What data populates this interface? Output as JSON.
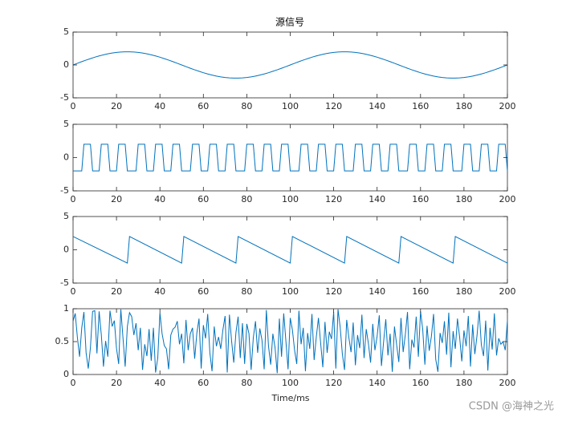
{
  "chart_data": [
    {
      "type": "line",
      "title": "源信号",
      "color": "#0072bd",
      "x": [
        0,
        2,
        4,
        6,
        8,
        10,
        12,
        14,
        16,
        18,
        20,
        22,
        24,
        26,
        28,
        30,
        32,
        34,
        36,
        38,
        40,
        42,
        44,
        46,
        48,
        50,
        52,
        54,
        56,
        58,
        60,
        62,
        64,
        66,
        68,
        70,
        72,
        74,
        76,
        78,
        80,
        82,
        84,
        86,
        88,
        90,
        92,
        94,
        96,
        98,
        100,
        102,
        104,
        106,
        108,
        110,
        112,
        114,
        116,
        118,
        120,
        122,
        124,
        126,
        128,
        130,
        132,
        134,
        136,
        138,
        140,
        142,
        144,
        146,
        148,
        150,
        152,
        154,
        156,
        158,
        160,
        162,
        164,
        166,
        168,
        170,
        172,
        174,
        176,
        178,
        180,
        182,
        184,
        186,
        188,
        190,
        192,
        194,
        196,
        198,
        200
      ],
      "values": [
        0,
        0.25,
        0.5,
        0.74,
        0.96,
        1.18,
        1.37,
        1.54,
        1.69,
        1.81,
        1.9,
        1.96,
        2,
        2,
        1.96,
        1.9,
        1.81,
        1.69,
        1.54,
        1.37,
        1.18,
        0.96,
        0.74,
        0.5,
        0.25,
        0,
        -0.25,
        -0.5,
        -0.74,
        -0.96,
        -1.18,
        -1.37,
        -1.54,
        -1.69,
        -1.81,
        -1.9,
        -1.96,
        -2,
        -2,
        -1.96,
        -1.9,
        -1.81,
        -1.69,
        -1.54,
        -1.37,
        -1.18,
        -0.96,
        -0.74,
        -0.5,
        -0.25,
        0,
        0.25,
        0.5,
        0.74,
        0.96,
        1.18,
        1.37,
        1.54,
        1.69,
        1.81,
        1.9,
        1.96,
        2,
        2,
        1.96,
        1.9,
        1.81,
        1.69,
        1.54,
        1.37,
        1.18,
        0.96,
        0.74,
        0.5,
        0.25,
        0,
        -0.25,
        -0.5,
        -0.74,
        -0.96,
        -1.18,
        -1.37,
        -1.54,
        -1.69,
        -1.81,
        -1.9,
        -1.96,
        -2,
        -2,
        -1.96,
        -1.9,
        -1.81,
        -1.69,
        -1.54,
        -1.37,
        -1.18,
        -0.96,
        -0.74,
        -0.5,
        -0.25,
        0
      ],
      "xlim": [
        0,
        200
      ],
      "xticks": [
        0,
        20,
        40,
        60,
        80,
        100,
        120,
        140,
        160,
        180,
        200
      ],
      "ylim": [
        -5,
        5
      ],
      "yticks": [
        -5,
        0,
        5
      ]
    },
    {
      "type": "line",
      "color": "#0072bd",
      "x": [
        0,
        4,
        5,
        8,
        9,
        12,
        13,
        16,
        17,
        20,
        21,
        24,
        25,
        29,
        30,
        33,
        34,
        37,
        38,
        41,
        42,
        45,
        46,
        49,
        50,
        54,
        55,
        58,
        59,
        62,
        63,
        66,
        67,
        70,
        71,
        74,
        75,
        79,
        80,
        83,
        84,
        87,
        88,
        91,
        92,
        95,
        96,
        99,
        100,
        104,
        105,
        108,
        109,
        112,
        113,
        116,
        117,
        120,
        121,
        124,
        125,
        129,
        130,
        133,
        134,
        137,
        138,
        141,
        142,
        145,
        146,
        149,
        150,
        154,
        155,
        158,
        159,
        162,
        163,
        166,
        167,
        170,
        171,
        174,
        175,
        179,
        180,
        183,
        184,
        187,
        188,
        191,
        192,
        195,
        196,
        199,
        200
      ],
      "values": [
        -2,
        -2,
        2,
        2,
        -2,
        -2,
        2,
        2,
        -2,
        -2,
        2,
        2,
        -2,
        -2,
        2,
        2,
        -2,
        -2,
        2,
        2,
        -2,
        -2,
        2,
        2,
        -2,
        -2,
        2,
        2,
        -2,
        -2,
        2,
        2,
        -2,
        -2,
        2,
        2,
        -2,
        -2,
        2,
        2,
        -2,
        -2,
        2,
        2,
        -2,
        -2,
        2,
        2,
        -2,
        -2,
        2,
        2,
        -2,
        -2,
        2,
        2,
        -2,
        -2,
        2,
        2,
        -2,
        -2,
        2,
        2,
        -2,
        -2,
        2,
        2,
        -2,
        -2,
        2,
        2,
        -2,
        -2,
        2,
        2,
        -2,
        -2,
        2,
        2,
        -2,
        -2,
        2,
        2,
        -2,
        -2,
        2,
        2,
        -2,
        -2,
        2,
        2,
        -2,
        -2,
        2,
        2,
        -2
      ],
      "xlim": [
        0,
        200
      ],
      "xticks": [
        0,
        20,
        40,
        60,
        80,
        100,
        120,
        140,
        160,
        180,
        200
      ],
      "ylim": [
        -5,
        5
      ],
      "yticks": [
        -5,
        0,
        5
      ]
    },
    {
      "type": "line",
      "color": "#0072bd",
      "x": [
        0,
        25,
        26,
        50,
        51,
        75,
        76,
        100,
        101,
        125,
        126,
        150,
        151,
        175,
        176,
        200
      ],
      "values": [
        2,
        -2,
        2,
        -2,
        2,
        -2,
        2,
        -2,
        2,
        -2,
        2,
        -2,
        2,
        -2,
        2,
        -2
      ],
      "xlim": [
        0,
        200
      ],
      "xticks": [
        0,
        20,
        40,
        60,
        80,
        100,
        120,
        140,
        160,
        180,
        200
      ],
      "ylim": [
        -5,
        5
      ],
      "yticks": [
        -5,
        0,
        5
      ]
    },
    {
      "type": "line",
      "x_label": "Time/ms",
      "color": "#0072bd",
      "x": [
        0,
        1,
        2,
        3,
        4,
        5,
        6,
        7,
        8,
        9,
        10,
        11,
        12,
        13,
        14,
        15,
        16,
        17,
        18,
        19,
        20,
        21,
        22,
        23,
        24,
        25,
        26,
        27,
        28,
        29,
        30,
        31,
        32,
        33,
        34,
        35,
        36,
        37,
        38,
        39,
        40,
        41,
        42,
        43,
        44,
        45,
        46,
        47,
        48,
        49,
        50,
        51,
        52,
        53,
        54,
        55,
        56,
        57,
        58,
        59,
        60,
        61,
        62,
        63,
        64,
        65,
        66,
        67,
        68,
        69,
        70,
        71,
        72,
        73,
        74,
        75,
        76,
        77,
        78,
        79,
        80,
        81,
        82,
        83,
        84,
        85,
        86,
        87,
        88,
        89,
        90,
        91,
        92,
        93,
        94,
        95,
        96,
        97,
        98,
        99,
        100,
        101,
        102,
        103,
        104,
        105,
        106,
        107,
        108,
        109,
        110,
        111,
        112,
        113,
        114,
        115,
        116,
        117,
        118,
        119,
        120,
        121,
        122,
        123,
        124,
        125,
        126,
        127,
        128,
        129,
        130,
        131,
        132,
        133,
        134,
        135,
        136,
        137,
        138,
        139,
        140,
        141,
        142,
        143,
        144,
        145,
        146,
        147,
        148,
        149,
        150,
        151,
        152,
        153,
        154,
        155,
        156,
        157,
        158,
        159,
        160,
        161,
        162,
        163,
        164,
        165,
        166,
        167,
        168,
        169,
        170,
        171,
        172,
        173,
        174,
        175,
        176,
        177,
        178,
        179,
        180,
        181,
        182,
        183,
        184,
        185,
        186,
        187,
        188,
        189,
        190,
        191,
        192,
        193,
        194,
        195,
        196,
        197,
        198,
        199,
        200
      ],
      "values": [
        0.81,
        0.93,
        0.56,
        0.27,
        0.71,
        0.95,
        0.33,
        0.09,
        0.41,
        0.96,
        0.97,
        0.32,
        0.96,
        0.61,
        0.12,
        0.51,
        0.27,
        0.97,
        0.73,
        0.82,
        0.4,
        0.16,
        0.99,
        0.55,
        0.12,
        0.73,
        0.94,
        0.88,
        0.6,
        0.78,
        0.37,
        0.71,
        0.07,
        0.46,
        0.28,
        0.69,
        0.21,
        0.71,
        0.03,
        0.25,
        0.94,
        0.62,
        0.44,
        0.39,
        0.08,
        0.6,
        0.69,
        0.72,
        0.81,
        0.46,
        0.62,
        0.17,
        0.83,
        0.37,
        0.62,
        0.71,
        0.24,
        0.63,
        0.85,
        0.09,
        0.75,
        0.55,
        0.92,
        0.33,
        0.05,
        0.73,
        0.43,
        0.57,
        0.39,
        0.68,
        0.89,
        0.03,
        0.91,
        0.51,
        0.18,
        0.64,
        0.88,
        0.25,
        0.78,
        0.16,
        0.77,
        0.62,
        0.07,
        0.56,
        0.81,
        0.33,
        0.7,
        0.52,
        0.08,
        0.98,
        0.43,
        0.15,
        0.62,
        0.41,
        0.02,
        0.85,
        0.27,
        0.93,
        0.51,
        0.08,
        0.86,
        0.68,
        0.37,
        0.16,
        0.97,
        0.46,
        0.71,
        0.05,
        0.63,
        0.39,
        0.92,
        0.22,
        0.57,
        0.86,
        0.48,
        0.11,
        0.8,
        0.33,
        0.65,
        0.54,
        0.95,
        0.09,
        0.99,
        0.72,
        0.31,
        0.07,
        0.83,
        0.56,
        0.34,
        0.79,
        0.14,
        0.6,
        0.4,
        0.91,
        0.25,
        0.69,
        0.47,
        0.18,
        0.77,
        0.37,
        0.58,
        0.9,
        0.13,
        0.5,
        0.84,
        0.29,
        0.62,
        0.04,
        0.73,
        0.45,
        0.19,
        0.86,
        0.34,
        0.61,
        0.95,
        0.08,
        0.53,
        0.41,
        0.88,
        0.27,
        0.96,
        0.69,
        0.15,
        0.74,
        0.36,
        0.58,
        0.92,
        0.23,
        0.04,
        0.63,
        0.48,
        0.81,
        0.3,
        0.94,
        0.11,
        0.66,
        0.39,
        0.85,
        0.57,
        0.2,
        0.67,
        0.43,
        0.89,
        0.12,
        0.76,
        0.31,
        0.59,
        0.97,
        0.45,
        0.28,
        0.82,
        0.06,
        0.71,
        0.38,
        0.93,
        0.29,
        0.55,
        0.46,
        0.5,
        0.37,
        0.82
      ],
      "xlim": [
        0,
        200
      ],
      "xticks": [
        0,
        20,
        40,
        60,
        80,
        100,
        120,
        140,
        160,
        180,
        200
      ],
      "ylim": [
        0,
        1
      ],
      "yticks": [
        0,
        0.5,
        1
      ]
    }
  ],
  "watermark": "CSDN @海神之光"
}
